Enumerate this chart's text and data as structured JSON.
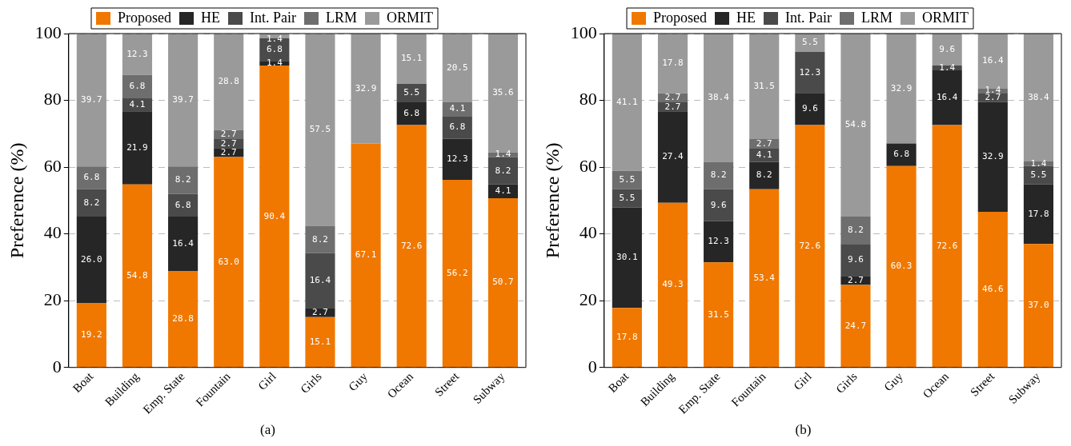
{
  "chart_data": [
    {
      "type": "bar",
      "stacked": true,
      "ylabel": "Preference (%)",
      "annotations": [
        "(a)"
      ],
      "categories": [
        "Boat",
        "Building",
        "Emp. State",
        "Fountain",
        "Girl",
        "Girls",
        "Guy",
        "Ocean",
        "Street",
        "Subway"
      ],
      "series": [
        {
          "name": "Proposed",
          "color": "#f07800",
          "values": [
            19.2,
            54.8,
            28.8,
            63.0,
            90.4,
            15.1,
            67.1,
            72.6,
            56.2,
            50.7
          ],
          "value_labels": [
            "19.2",
            "54.8",
            "28.8",
            "63.0",
            "90.4",
            "15.1",
            "67.1",
            "72.6",
            "56.2",
            "50.7"
          ]
        },
        {
          "name": "HE",
          "color": "#262626",
          "values": [
            26.0,
            21.9,
            16.4,
            2.7,
            1.4,
            2.7,
            null,
            6.8,
            12.3,
            4.1
          ],
          "value_labels": [
            "26.0",
            "21.9",
            "16.4",
            "2.7",
            "1.4",
            "2.7",
            null,
            "6.8",
            "12.3",
            "4.1"
          ]
        },
        {
          "name": "Int. Pair",
          "color": "#4a4a4a",
          "values": [
            8.2,
            4.1,
            6.8,
            2.7,
            6.8,
            16.4,
            null,
            5.5,
            6.8,
            8.2
          ],
          "value_labels": [
            "8.2",
            "4.1",
            "6.8",
            "2.7",
            "6.8",
            "16.4",
            null,
            "5.5",
            "6.8",
            "8.2"
          ]
        },
        {
          "name": "LRM",
          "color": "#6e6e6e",
          "values": [
            6.8,
            6.8,
            8.2,
            2.7,
            null,
            8.2,
            null,
            null,
            4.1,
            1.4
          ],
          "value_labels": [
            "6.8",
            "6.8",
            "8.2",
            "2.7",
            null,
            "8.2",
            null,
            null,
            "4.1",
            "1.4"
          ]
        },
        {
          "name": "ORMIT",
          "color": "#9a9a9a",
          "values": [
            39.7,
            12.3,
            39.7,
            28.8,
            1.4,
            57.5,
            32.9,
            15.1,
            20.5,
            35.6
          ],
          "value_labels": [
            "39.7",
            "12.3",
            "39.7",
            "28.8",
            "1.4",
            "57.5",
            "32.9",
            "15.1",
            "20.5",
            "35.6"
          ]
        }
      ],
      "ylim": [
        0,
        100
      ],
      "yticks": [
        0,
        20,
        40,
        60,
        80,
        100
      ],
      "grid": "y",
      "legend": "top"
    },
    {
      "type": "bar",
      "stacked": true,
      "ylabel": "Preference (%)",
      "annotations": [
        "(b)"
      ],
      "categories": [
        "Boat",
        "Building",
        "Emp. State",
        "Fountain",
        "Girl",
        "Girls",
        "Guy",
        "Ocean",
        "Street",
        "Subway"
      ],
      "series": [
        {
          "name": "Proposed",
          "color": "#f07800",
          "values": [
            17.8,
            49.3,
            31.5,
            53.4,
            72.6,
            24.7,
            60.3,
            72.6,
            46.6,
            37.0
          ],
          "value_labels": [
            "17.8",
            "49.3",
            "31.5",
            "53.4",
            "72.6",
            "24.7",
            "60.3",
            "72.6",
            "46.6",
            "37.0"
          ]
        },
        {
          "name": "HE",
          "color": "#262626",
          "values": [
            30.1,
            27.4,
            12.3,
            8.2,
            9.6,
            2.7,
            6.8,
            16.4,
            32.9,
            17.8
          ],
          "value_labels": [
            "30.1",
            "27.4",
            "12.3",
            "8.2",
            "9.6",
            "2.7",
            "6.8",
            "16.4",
            "32.9",
            "17.8"
          ]
        },
        {
          "name": "Int. Pair",
          "color": "#4a4a4a",
          "values": [
            5.5,
            2.7,
            9.6,
            4.1,
            12.3,
            9.6,
            null,
            1.4,
            2.7,
            5.5
          ],
          "value_labels": [
            "5.5",
            "2.7",
            "9.6",
            "4.1",
            "12.3",
            "9.6",
            null,
            "1.4",
            "2.7",
            "5.5"
          ]
        },
        {
          "name": "LRM",
          "color": "#6e6e6e",
          "values": [
            5.5,
            2.7,
            8.2,
            2.7,
            null,
            8.2,
            null,
            null,
            1.4,
            1.4
          ],
          "value_labels": [
            "5.5",
            "2.7",
            "8.2",
            "2.7",
            null,
            "8.2",
            null,
            null,
            "1.4",
            "1.4"
          ]
        },
        {
          "name": "ORMIT",
          "color": "#9a9a9a",
          "values": [
            41.1,
            17.8,
            38.4,
            31.5,
            5.5,
            54.8,
            32.9,
            9.6,
            16.4,
            38.4
          ],
          "value_labels": [
            "41.1",
            "17.8",
            "38.4",
            "31.5",
            "5.5",
            "54.8",
            "32.9",
            "9.6",
            "16.4",
            "38.4"
          ]
        }
      ],
      "ylim": [
        0,
        100
      ],
      "yticks": [
        0,
        20,
        40,
        60,
        80,
        100
      ],
      "grid": "y",
      "legend": "top"
    }
  ]
}
